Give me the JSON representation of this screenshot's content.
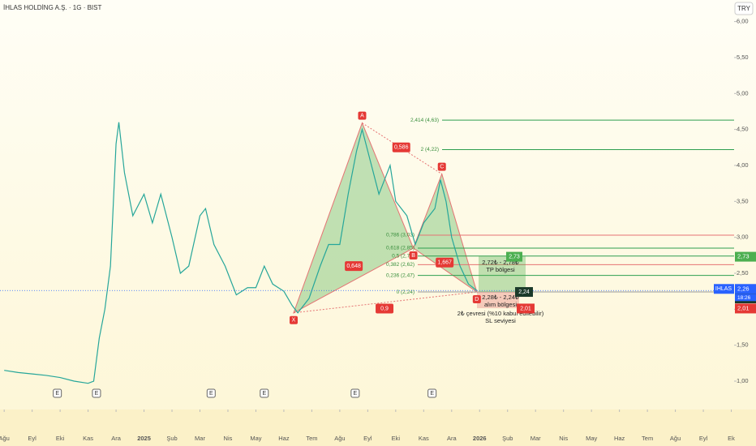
{
  "header": {
    "title": "İHLAS HOLDİNG A.Ş. · 1G · BIST",
    "currency": "TRY"
  },
  "chart_data": {
    "type": "line",
    "x": [
      0,
      0.5,
      1,
      1.5,
      2,
      2.5,
      3,
      3.2,
      3.4,
      3.6,
      3.8,
      4.0,
      4.1,
      4.3,
      4.6,
      5.0,
      5.3,
      5.6,
      6.0,
      6.3,
      6.6,
      7.0,
      7.2,
      7.5,
      7.9,
      8.3,
      8.7,
      9.0,
      9.3,
      9.6,
      10.0,
      10.3,
      10.5,
      10.9,
      11.3,
      11.6,
      12.0,
      12.3,
      12.6,
      12.8,
      13.0,
      13.4,
      13.8,
      14.0,
      14.4,
      14.7,
      15.0,
      15.4,
      15.6,
      15.8,
      16.0,
      16.3,
      16.6,
      16.9
    ],
    "series": [
      {
        "name": "IHLAS",
        "color": "#26a69a",
        "values": [
          1.15,
          1.12,
          1.1,
          1.08,
          1.05,
          1.0,
          0.97,
          1.0,
          1.6,
          2.0,
          2.6,
          4.3,
          4.6,
          3.9,
          3.3,
          3.6,
          3.2,
          3.6,
          3.0,
          2.5,
          2.6,
          3.3,
          3.4,
          2.9,
          2.6,
          2.2,
          2.3,
          2.3,
          2.6,
          2.35,
          2.25,
          2.05,
          1.95,
          2.15,
          2.6,
          2.9,
          2.9,
          3.6,
          4.2,
          4.5,
          4.2,
          3.6,
          4.0,
          3.5,
          3.3,
          2.9,
          3.2,
          3.4,
          3.8,
          3.5,
          3.0,
          2.6,
          2.35,
          2.26
        ]
      }
    ],
    "xlim": [
      -0.15,
      26.1
    ],
    "ylim": [
      0.38,
      6.3
    ],
    "xticks": [
      {
        "value": 0,
        "label": "Ağu"
      },
      {
        "value": 1,
        "label": "Eyl"
      },
      {
        "value": 2,
        "label": "Eki"
      },
      {
        "value": 3,
        "label": "Kas"
      },
      {
        "value": 4,
        "label": "Ara"
      },
      {
        "value": 5,
        "label": "2025"
      },
      {
        "value": 6,
        "label": "Şub"
      },
      {
        "value": 7,
        "label": "Mar"
      },
      {
        "value": 8,
        "label": "Nis"
      },
      {
        "value": 9,
        "label": "May"
      },
      {
        "value": 10,
        "label": "Haz"
      },
      {
        "value": 11,
        "label": "Tem"
      },
      {
        "value": 12,
        "label": "Ağu"
      },
      {
        "value": 13,
        "label": "Eyl"
      },
      {
        "value": 14,
        "label": "Eki"
      },
      {
        "value": 15,
        "label": "Kas"
      },
      {
        "value": 16,
        "label": "Ara"
      },
      {
        "value": 17,
        "label": "2026"
      },
      {
        "value": 18,
        "label": "Şub"
      },
      {
        "value": 19,
        "label": "Mar"
      },
      {
        "value": 20,
        "label": "Nis"
      },
      {
        "value": 21,
        "label": "May"
      },
      {
        "value": 22,
        "label": "Haz"
      },
      {
        "value": 23,
        "label": "Tem"
      },
      {
        "value": 24,
        "label": "Ağu"
      },
      {
        "value": 25,
        "label": "Eyl"
      },
      {
        "value": 26,
        "label": "Ek"
      }
    ],
    "yticks": [
      {
        "value": 1,
        "label": "1,00"
      },
      {
        "value": 1.5,
        "label": "1,50"
      },
      {
        "value": 2,
        "label": "2,00"
      },
      {
        "value": 2.5,
        "label": "2,50"
      },
      {
        "value": 3,
        "label": "3,00"
      },
      {
        "value": 3.5,
        "label": "3,50"
      },
      {
        "value": 4,
        "label": "4,00"
      },
      {
        "value": 4.5,
        "label": "4,50"
      },
      {
        "value": 5,
        "label": "5,00"
      },
      {
        "value": 5.5,
        "label": "5,50"
      },
      {
        "value": 6,
        "label": "6,00"
      }
    ],
    "pattern": [
      {
        "label": "X",
        "x": 10.35,
        "y": 1.95
      },
      {
        "label": "A",
        "x": 12.8,
        "y": 4.59
      },
      {
        "label": "B",
        "x": 14.63,
        "y": 2.85
      },
      {
        "label": "C",
        "x": 15.65,
        "y": 3.88
      },
      {
        "label": "D",
        "x": 16.9,
        "y": 2.24
      }
    ],
    "ratios": [
      {
        "label": "0,648",
        "x": 12.5,
        "y": 2.6
      },
      {
        "label": "0,586",
        "x": 14.2,
        "y": 4.25
      },
      {
        "label": "1,667",
        "x": 15.75,
        "y": 2.65
      },
      {
        "label": "0,9",
        "x": 13.6,
        "y": 2.01
      }
    ],
    "fib_levels": [
      {
        "label": "2,414 (4,63)",
        "value": 4.63
      },
      {
        "label": "2 (4,22)",
        "value": 4.22
      },
      {
        "label": "0,786 (3,03)",
        "value": 3.03
      },
      {
        "label": "0,618 (2,85)",
        "value": 2.85
      },
      {
        "label": "0,5 (2,74)",
        "value": 2.74
      },
      {
        "label": "0,382 (2,62)",
        "value": 2.62
      },
      {
        "label": "0,236 (2,47)",
        "value": 2.47
      },
      {
        "label": "0 (2,24)",
        "value": 2.24
      }
    ],
    "notes": [
      "2,72₺ - 2,78₺",
      "TP bölgesi",
      "2,28₺ - 2,24₺",
      "alım bölgesi",
      "2₺ çevresi (%10 kabul edilebilir)",
      "SL seviyesi"
    ],
    "price_tags": [
      {
        "label": "2,73",
        "value": 2.73,
        "color": "#4caf50"
      },
      {
        "label": "2,26",
        "value": 2.26,
        "color": "#2962ff"
      },
      {
        "label": "2,24",
        "value": 2.24,
        "color": "#1b3a2a"
      },
      {
        "label": "2,01",
        "value": 2.01,
        "color": "#e53935"
      }
    ],
    "ticker": "IHLAS",
    "countdown": "18:26",
    "earnings": [
      {
        "label": "E",
        "x": 1.9
      },
      {
        "label": "E",
        "x": 3.3
      },
      {
        "label": "E",
        "x": 7.4
      },
      {
        "label": "E",
        "x": 9.3
      },
      {
        "label": "E",
        "x": 12.55
      },
      {
        "label": "E",
        "x": 15.3
      }
    ]
  }
}
